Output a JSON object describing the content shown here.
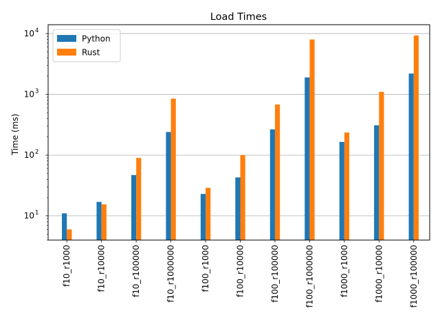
{
  "chart_data": {
    "type": "bar",
    "title": "Load Times",
    "xlabel": "",
    "ylabel": "Time (ms)",
    "yscale": "log",
    "ylim": [
      4,
      14000
    ],
    "grid": "y-major",
    "legend_placement": "top-left",
    "categories": [
      "f10_r1000",
      "f10_r10000",
      "f10_r100000",
      "f10_r1000000",
      "f100_r1000",
      "f100_r10000",
      "f100_r100000",
      "f100_r1000000",
      "f1000_r1000",
      "f1000_r10000",
      "f1000_r100000"
    ],
    "series": [
      {
        "name": "Python",
        "color": "#1f77b4",
        "values": [
          11,
          17,
          47,
          240,
          23,
          43,
          265,
          1900,
          165,
          310,
          2200
        ]
      },
      {
        "name": "Rust",
        "color": "#ff7f0e",
        "values": [
          6,
          15.5,
          90,
          850,
          29,
          100,
          680,
          8000,
          235,
          1100,
          9300
        ]
      }
    ],
    "y_ticks": [
      {
        "value": 10,
        "base": "10",
        "exp": "1"
      },
      {
        "value": 100,
        "base": "10",
        "exp": "2"
      },
      {
        "value": 1000,
        "base": "10",
        "exp": "3"
      },
      {
        "value": 10000,
        "base": "10",
        "exp": "4"
      }
    ]
  }
}
